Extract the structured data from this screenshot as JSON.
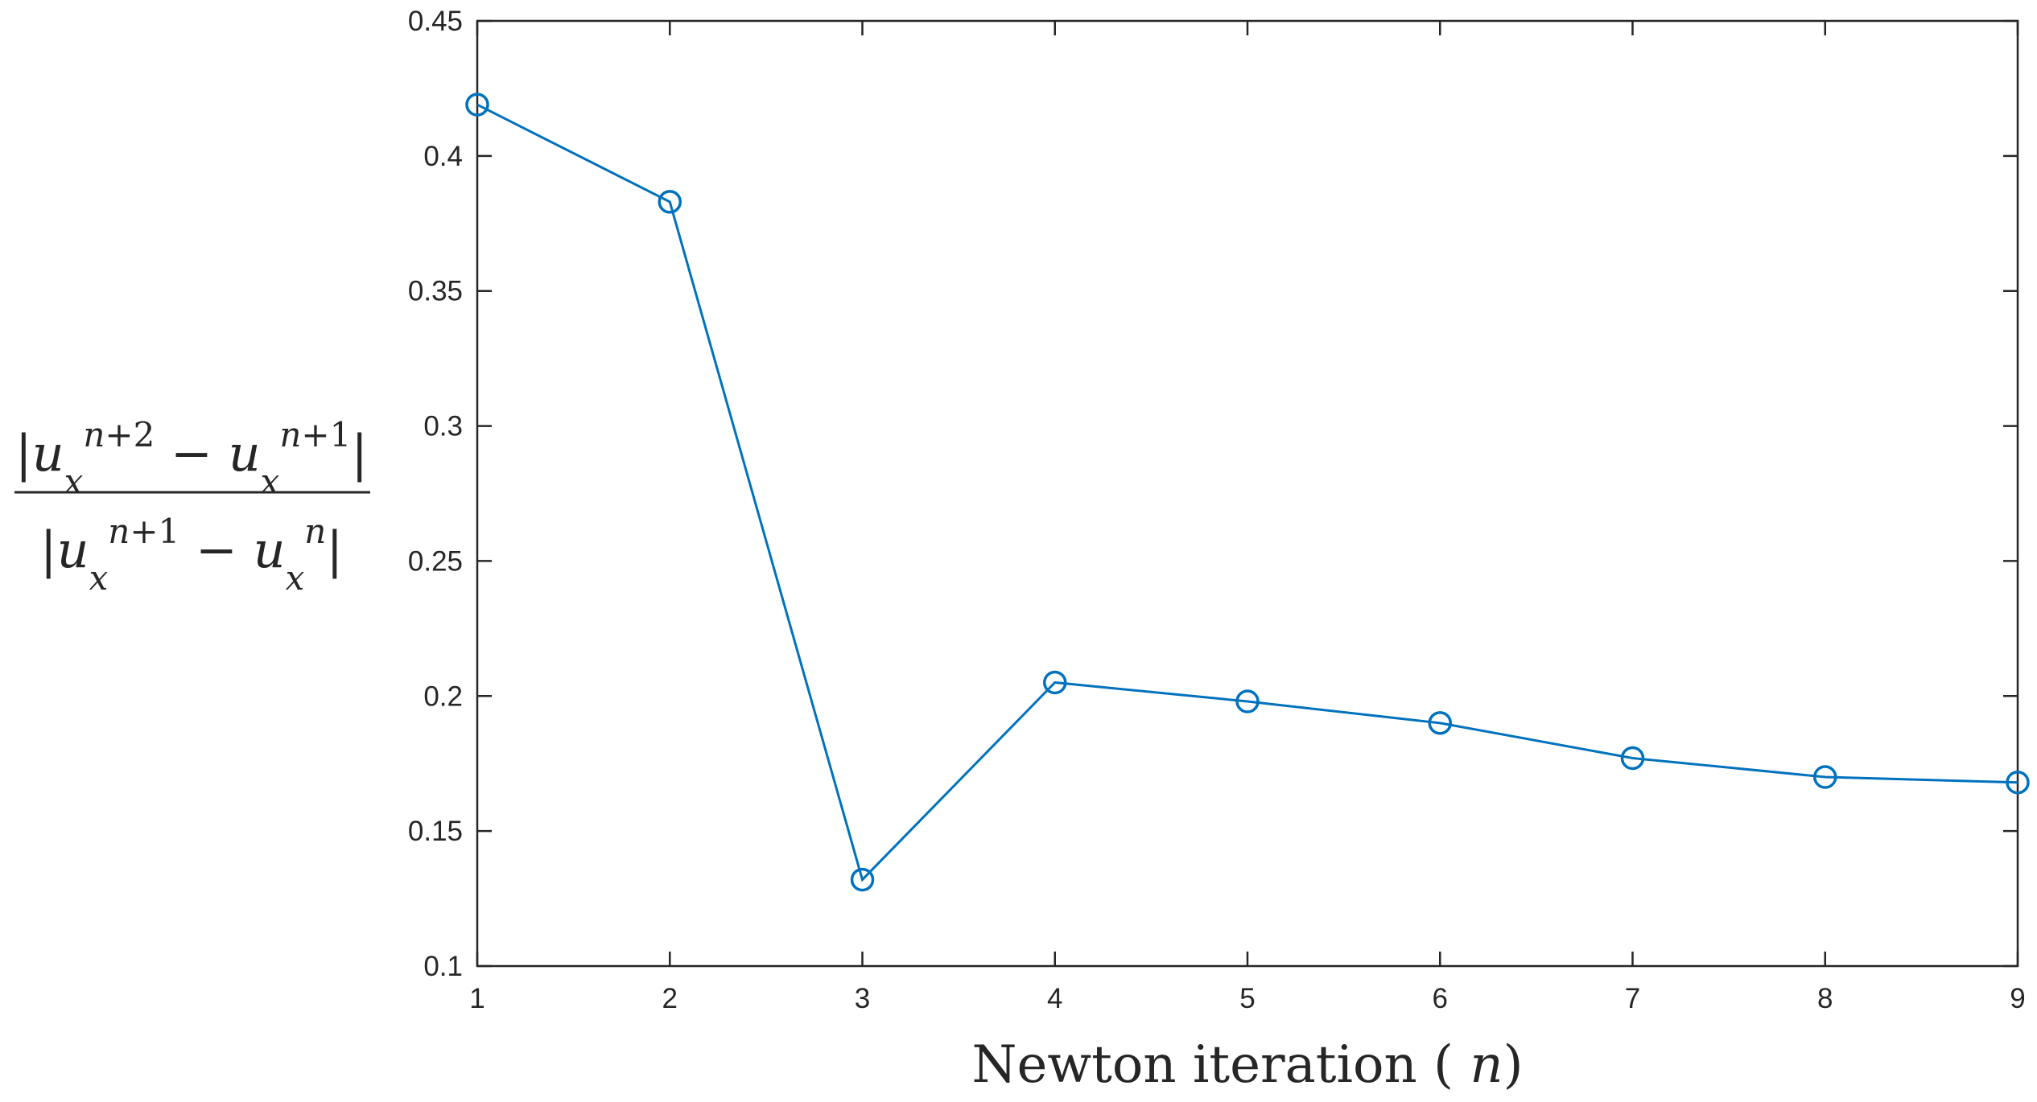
{
  "chart_data": {
    "type": "line",
    "title": "",
    "xlabel": "Newton iteration (n)",
    "ylabel": {
      "numerator": "|u_x^{n+2} − u_x^{n+1}|",
      "denominator": "|u_x^{n+1} − u_x^{n}|"
    },
    "x": [
      1,
      2,
      3,
      4,
      5,
      6,
      7,
      8,
      9
    ],
    "series": [
      {
        "name": "ratio",
        "color": "#0072BD",
        "marker": "circle",
        "values": [
          0.419,
          0.383,
          0.132,
          0.205,
          0.198,
          0.19,
          0.177,
          0.17,
          0.168
        ]
      }
    ],
    "xlim": [
      1,
      9
    ],
    "ylim": [
      0.1,
      0.45
    ],
    "xticks": [
      1,
      2,
      3,
      4,
      5,
      6,
      7,
      8,
      9
    ],
    "xtick_labels": [
      "1",
      "2",
      "3",
      "4",
      "5",
      "6",
      "7",
      "8",
      "9"
    ],
    "yticks": [
      0.1,
      0.15,
      0.2,
      0.25,
      0.3,
      0.35,
      0.4,
      0.45
    ],
    "ytick_labels": [
      "0.1",
      "0.15",
      "0.2",
      "0.25",
      "0.3",
      "0.35",
      "0.4",
      "0.45"
    ],
    "grid": false,
    "legend": "none"
  }
}
